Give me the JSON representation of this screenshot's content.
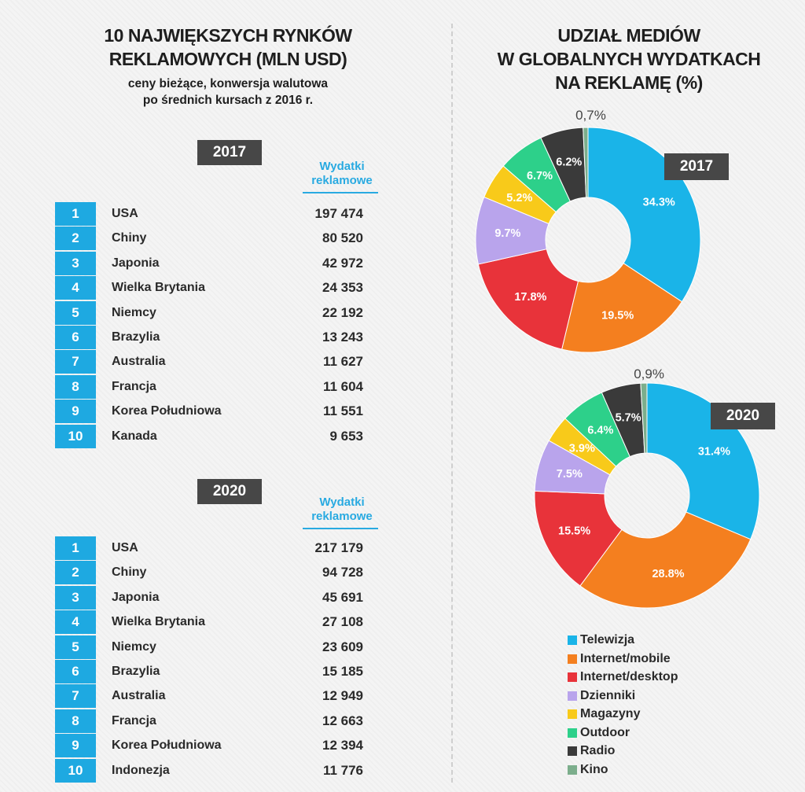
{
  "left": {
    "title_line1": "10 NAJWIĘKSZYCH RYNKÓW",
    "title_line2": "REKLAMOWYCH (MLN USD)",
    "subtitle_line1": "ceny bieżące, konwersja  walutowa",
    "subtitle_line2": "po średnich kursach  z 2016  r.",
    "tables": [
      {
        "year": "2017",
        "col_header_line1": "Wydatki",
        "col_header_line2": "reklamowe",
        "rows": [
          {
            "rank": "1",
            "country": "USA",
            "value": "197 474"
          },
          {
            "rank": "2",
            "country": "Chiny",
            "value": "80 520"
          },
          {
            "rank": "3",
            "country": "Japonia",
            "value": "42 972"
          },
          {
            "rank": "4",
            "country": "Wielka Brytania",
            "value": "24 353"
          },
          {
            "rank": "5",
            "country": "Niemcy",
            "value": "22 192"
          },
          {
            "rank": "6",
            "country": "Brazylia",
            "value": "13 243"
          },
          {
            "rank": "7",
            "country": "Australia",
            "value": "11 627"
          },
          {
            "rank": "8",
            "country": "Francja",
            "value": "11 604"
          },
          {
            "rank": "9",
            "country": "Korea Południowa",
            "value": "11 551"
          },
          {
            "rank": "10",
            "country": "Kanada",
            "value": "9 653"
          }
        ]
      },
      {
        "year": "2020",
        "col_header_line1": "Wydatki",
        "col_header_line2": "reklamowe",
        "rows": [
          {
            "rank": "1",
            "country": "USA",
            "value": "217 179"
          },
          {
            "rank": "2",
            "country": "Chiny",
            "value": "94 728"
          },
          {
            "rank": "3",
            "country": "Japonia",
            "value": "45 691"
          },
          {
            "rank": "4",
            "country": "Wielka Brytania",
            "value": "27 108"
          },
          {
            "rank": "5",
            "country": "Niemcy",
            "value": "23 609"
          },
          {
            "rank": "6",
            "country": "Brazylia",
            "value": "15 185"
          },
          {
            "rank": "7",
            "country": "Australia",
            "value": "12 949"
          },
          {
            "rank": "8",
            "country": "Francja",
            "value": "12 663"
          },
          {
            "rank": "9",
            "country": "Korea Południowa",
            "value": "12 394"
          },
          {
            "rank": "10",
            "country": "Indonezja",
            "value": "11 776"
          }
        ]
      }
    ]
  },
  "right": {
    "title_line1": "UDZIAŁ MEDIÓW",
    "title_line2": "W GLOBALNYCH  WYDATKACH",
    "title_line3": "NA  REKLAMĘ (%)"
  },
  "chart_data": [
    {
      "type": "pie",
      "title": "2017",
      "donut": true,
      "categories": [
        "Telewizja",
        "Internet/mobile",
        "Internet/desktop",
        "Dzienniki",
        "Magazyny",
        "Outdoor",
        "Radio",
        "Kino"
      ],
      "values": [
        34.3,
        19.5,
        17.8,
        9.7,
        5.2,
        6.7,
        6.2,
        0.7
      ],
      "labels": [
        "34.3%",
        "19.5%",
        "17.8%",
        "9.7%",
        "5.2%",
        "6.7%",
        "6.2%",
        "0,7%"
      ],
      "colors": [
        "#1ab4e8",
        "#f47f1f",
        "#e8333a",
        "#b9a4ec",
        "#f8ca1a",
        "#2dd08a",
        "#3a3a3a",
        "#7cae8c"
      ]
    },
    {
      "type": "pie",
      "title": "2020",
      "donut": true,
      "categories": [
        "Telewizja",
        "Internet/mobile",
        "Internet/desktop",
        "Dzienniki",
        "Magazyny",
        "Outdoor",
        "Radio",
        "Kino"
      ],
      "values": [
        31.4,
        28.8,
        15.5,
        7.5,
        3.9,
        6.4,
        5.7,
        0.9
      ],
      "labels": [
        "31.4%",
        "28.8%",
        "15.5%",
        "7.5%",
        "3.9%",
        "6.4%",
        "5.7%",
        "0,9%"
      ],
      "colors": [
        "#1ab4e8",
        "#f47f1f",
        "#e8333a",
        "#b9a4ec",
        "#f8ca1a",
        "#2dd08a",
        "#3a3a3a",
        "#7cae8c"
      ]
    }
  ],
  "legend": [
    {
      "label": "Telewizja",
      "color": "#1ab4e8"
    },
    {
      "label": "Internet/mobile",
      "color": "#f47f1f"
    },
    {
      "label": "Internet/desktop",
      "color": "#e8333a"
    },
    {
      "label": "Dzienniki",
      "color": "#b9a4ec"
    },
    {
      "label": "Magazyny",
      "color": "#f8ca1a"
    },
    {
      "label": "Outdoor",
      "color": "#2dd08a"
    },
    {
      "label": "Radio",
      "color": "#3a3a3a"
    },
    {
      "label": "Kino",
      "color": "#7cae8c"
    }
  ]
}
